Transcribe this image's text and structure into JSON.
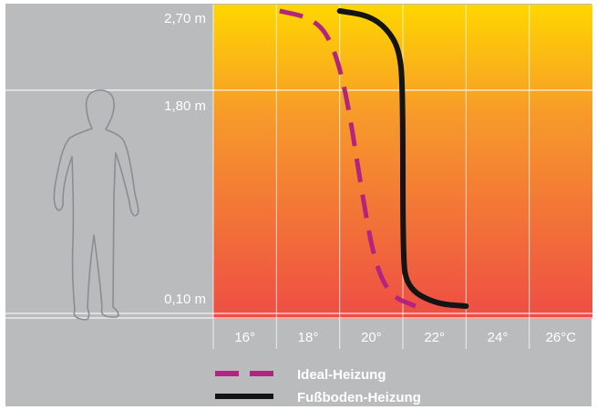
{
  "chart_data": {
    "type": "line",
    "xlabel": "",
    "ylabel": "",
    "xlim": [
      15,
      27
    ],
    "ylim": [
      0,
      2.7
    ],
    "x_ticks": [
      16,
      18,
      20,
      22,
      24,
      26
    ],
    "x_tick_labels": [
      "16°",
      "18°",
      "20°",
      "22°",
      "24°",
      "26°C"
    ],
    "y_ticks": [
      0.1,
      1.8,
      2.7
    ],
    "y_tick_labels": [
      "0,10 m",
      "1,80 m",
      "2,70 m"
    ],
    "grid": true,
    "legend_position": "bottom-center",
    "background_gradient": {
      "top": "#ffd600",
      "middle": "#f79a2a",
      "bottom": "#ee4d45"
    },
    "series": [
      {
        "name": "Ideal-Heizung",
        "style": "dashed",
        "color": "#b3247f",
        "points": [
          {
            "x": 17.1,
            "y": 2.7
          },
          {
            "x": 18.1,
            "y": 2.62
          },
          {
            "x": 18.7,
            "y": 2.4
          },
          {
            "x": 19.2,
            "y": 1.8
          },
          {
            "x": 19.7,
            "y": 1.0
          },
          {
            "x": 20.1,
            "y": 0.45
          },
          {
            "x": 20.6,
            "y": 0.18
          },
          {
            "x": 21.4,
            "y": 0.1
          }
        ]
      },
      {
        "name": "Fußboden-Heizung",
        "style": "solid",
        "color": "#141414",
        "points": [
          {
            "x": 19.0,
            "y": 2.7
          },
          {
            "x": 19.9,
            "y": 2.65
          },
          {
            "x": 20.5,
            "y": 2.5
          },
          {
            "x": 20.9,
            "y": 2.25
          },
          {
            "x": 21.0,
            "y": 1.8
          },
          {
            "x": 21.0,
            "y": 0.55
          },
          {
            "x": 21.1,
            "y": 0.25
          },
          {
            "x": 22.0,
            "y": 0.12
          },
          {
            "x": 23.0,
            "y": 0.1
          }
        ]
      }
    ]
  },
  "legend": [
    {
      "label": "Ideal-Heizung",
      "style": "dashed",
      "color": "#b3247f"
    },
    {
      "label": "Fußboden-Heizung",
      "style": "solid",
      "color": "#141414"
    }
  ],
  "icons": {
    "person": "person-silhouette-icon"
  }
}
